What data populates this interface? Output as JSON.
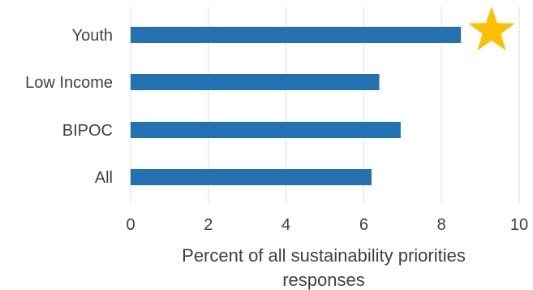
{
  "chart_data": {
    "type": "bar",
    "orientation": "horizontal",
    "categories": [
      "Youth",
      "Low Income",
      "BIPOC",
      "All"
    ],
    "values": [
      8.5,
      6.4,
      6.95,
      6.2
    ],
    "xlabel_lines": [
      "Percent of all sustainability priorities",
      "responses"
    ],
    "ylabel": "",
    "xlim": [
      0,
      10
    ],
    "xticks": [
      0,
      2,
      4,
      6,
      8,
      10
    ],
    "grid": "vertical",
    "legend": "none",
    "bar_color": "#2271b1",
    "annotation": {
      "shape": "star-icon",
      "category": "Youth",
      "color": "#ffbf00"
    }
  }
}
